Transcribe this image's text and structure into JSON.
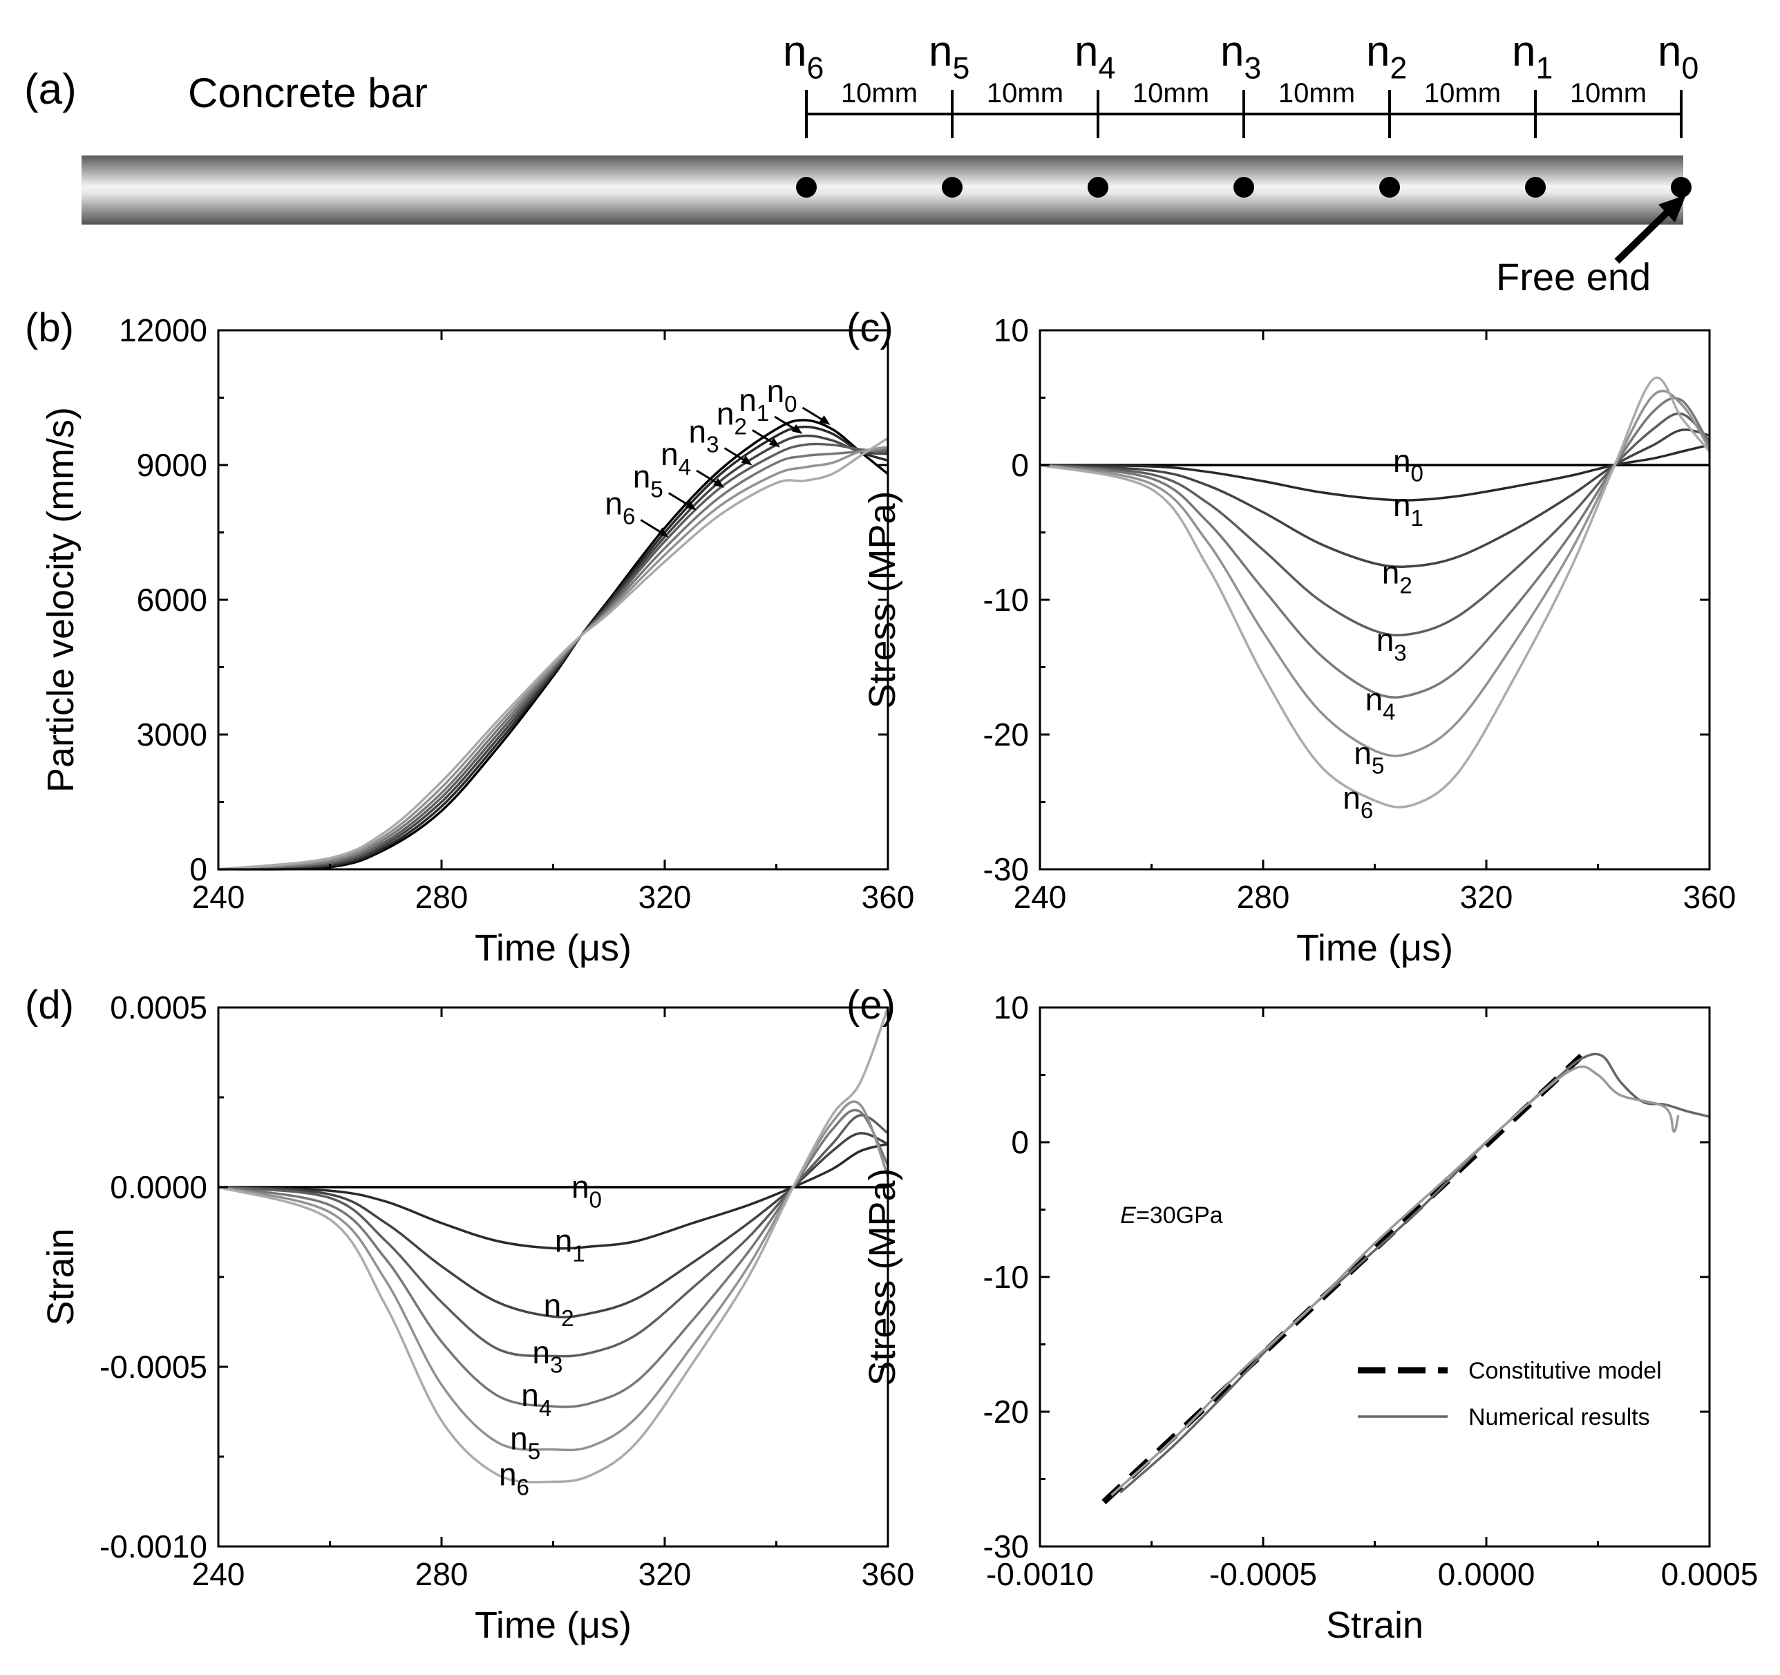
{
  "panel_a": {
    "label": "(a)",
    "title": "Concrete bar",
    "spacing_label": "10mm",
    "free_end_label": "Free end",
    "nodes": [
      {
        "base": "n",
        "sub": "6"
      },
      {
        "base": "n",
        "sub": "5"
      },
      {
        "base": "n",
        "sub": "4"
      },
      {
        "base": "n",
        "sub": "3"
      },
      {
        "base": "n",
        "sub": "2"
      },
      {
        "base": "n",
        "sub": "1"
      },
      {
        "base": "n",
        "sub": "0"
      }
    ]
  },
  "series_names": [
    "n0",
    "n1",
    "n2",
    "n3",
    "n4",
    "n5",
    "n6"
  ],
  "series_colors": [
    "#000000",
    "#2a2a2a",
    "#444444",
    "#5e5e5e",
    "#787878",
    "#929292",
    "#ababab"
  ],
  "chart_data": [
    {
      "id": "b",
      "panel_label": "(b)",
      "type": "line",
      "xlabel": "Time (μs)",
      "ylabel": "Particle velocity (mm/s)",
      "xlim": [
        240,
        360
      ],
      "ylim": [
        0,
        12000
      ],
      "xticks": [
        240,
        280,
        320,
        360
      ],
      "xtick_labels": [
        "240",
        "280",
        "320",
        "360"
      ],
      "yticks": [
        0,
        3000,
        6000,
        9000,
        12000
      ],
      "ytick_labels": [
        "0",
        "3000",
        "6000",
        "9000",
        "12000"
      ],
      "series": [
        {
          "name": "n0",
          "x": [
            240,
            260,
            270,
            280,
            290,
            300,
            305,
            310,
            320,
            330,
            340,
            345,
            350,
            355,
            360
          ],
          "y": [
            0,
            50,
            450,
            1300,
            2700,
            4300,
            5200,
            6000,
            7600,
            8900,
            9800,
            10000,
            9800,
            9300,
            8800
          ]
        },
        {
          "name": "n1",
          "x": [
            240,
            260,
            270,
            280,
            290,
            300,
            305,
            310,
            320,
            330,
            340,
            345,
            350,
            355,
            360
          ],
          "y": [
            0,
            80,
            500,
            1400,
            2800,
            4350,
            5200,
            5950,
            7500,
            8800,
            9650,
            9850,
            9700,
            9300,
            9100
          ]
        },
        {
          "name": "n2",
          "x": [
            240,
            260,
            270,
            280,
            290,
            300,
            305,
            310,
            320,
            330,
            340,
            345,
            350,
            355,
            360
          ],
          "y": [
            0,
            110,
            560,
            1500,
            2900,
            4400,
            5200,
            5900,
            7400,
            8650,
            9450,
            9650,
            9550,
            9300,
            9250
          ]
        },
        {
          "name": "n3",
          "x": [
            240,
            260,
            270,
            280,
            290,
            300,
            305,
            310,
            320,
            330,
            340,
            345,
            350,
            355,
            360
          ],
          "y": [
            0,
            140,
            620,
            1600,
            3000,
            4450,
            5200,
            5850,
            7300,
            8500,
            9250,
            9450,
            9450,
            9350,
            9300
          ]
        },
        {
          "name": "n4",
          "x": [
            240,
            260,
            270,
            280,
            290,
            300,
            305,
            310,
            320,
            330,
            340,
            345,
            350,
            355,
            360
          ],
          "y": [
            0,
            170,
            690,
            1700,
            3100,
            4500,
            5200,
            5800,
            7150,
            8300,
            9050,
            9200,
            9250,
            9300,
            9350
          ]
        },
        {
          "name": "n5",
          "x": [
            240,
            260,
            270,
            280,
            290,
            300,
            305,
            310,
            320,
            330,
            340,
            345,
            350,
            355,
            360
          ],
          "y": [
            0,
            210,
            760,
            1820,
            3200,
            4550,
            5200,
            5750,
            7000,
            8100,
            8800,
            8950,
            9050,
            9300,
            9400
          ]
        },
        {
          "name": "n6",
          "x": [
            240,
            260,
            270,
            280,
            290,
            300,
            305,
            310,
            320,
            330,
            340,
            345,
            350,
            355,
            360
          ],
          "y": [
            0,
            250,
            840,
            1950,
            3300,
            4600,
            5200,
            5700,
            6850,
            7900,
            8600,
            8650,
            8800,
            9200,
            9600
          ]
        }
      ],
      "annotations": [
        {
          "base": "n",
          "sub": "0",
          "x": 341,
          "y": 10400
        },
        {
          "base": "n",
          "sub": "1",
          "x": 336,
          "y": 10200
        },
        {
          "base": "n",
          "sub": "2",
          "x": 332,
          "y": 9900
        },
        {
          "base": "n",
          "sub": "3",
          "x": 327,
          "y": 9500
        },
        {
          "base": "n",
          "sub": "4",
          "x": 322,
          "y": 9000
        },
        {
          "base": "n",
          "sub": "5",
          "x": 317,
          "y": 8500
        },
        {
          "base": "n",
          "sub": "6",
          "x": 312,
          "y": 7900
        }
      ]
    },
    {
      "id": "c",
      "panel_label": "(c)",
      "type": "line",
      "xlabel": "Time (μs)",
      "ylabel": "Stress (MPa)",
      "xlim": [
        240,
        360
      ],
      "ylim": [
        -30,
        10
      ],
      "xticks": [
        240,
        280,
        320,
        360
      ],
      "xtick_labels": [
        "240",
        "280",
        "320",
        "360"
      ],
      "yticks": [
        -30,
        -20,
        -10,
        0,
        10
      ],
      "ytick_labels": [
        "-30",
        "-20",
        "-10",
        "0",
        "10"
      ],
      "series": [
        {
          "name": "n0",
          "x": [
            240,
            360
          ],
          "y": [
            0,
            0
          ]
        },
        {
          "name": "n1",
          "x": [
            240,
            260,
            270,
            280,
            290,
            300,
            307,
            315,
            325,
            335,
            343,
            350,
            355,
            360
          ],
          "y": [
            0,
            -0.1,
            -0.5,
            -1.2,
            -2.0,
            -2.5,
            -2.6,
            -2.3,
            -1.6,
            -0.8,
            0,
            0.5,
            1.0,
            1.5
          ]
        },
        {
          "name": "n2",
          "x": [
            240,
            260,
            270,
            280,
            290,
            300,
            307,
            315,
            325,
            335,
            343,
            350,
            355,
            360
          ],
          "y": [
            0,
            -0.4,
            -1.5,
            -3.5,
            -5.8,
            -7.3,
            -7.5,
            -6.8,
            -4.8,
            -2.3,
            0,
            1.5,
            2.6,
            2.2
          ]
        },
        {
          "name": "n3",
          "x": [
            240,
            260,
            270,
            280,
            290,
            300,
            307,
            315,
            325,
            335,
            343,
            350,
            355,
            360
          ],
          "y": [
            0,
            -0.7,
            -2.8,
            -6.3,
            -10.0,
            -12.3,
            -12.5,
            -11.2,
            -7.8,
            -3.8,
            0,
            2.7,
            3.8,
            1.8
          ]
        },
        {
          "name": "n4",
          "x": [
            240,
            260,
            270,
            280,
            290,
            300,
            307,
            315,
            325,
            335,
            343,
            350,
            355,
            360
          ],
          "y": [
            0,
            -1.0,
            -4.2,
            -9.2,
            -14.0,
            -16.9,
            -17.0,
            -15.2,
            -10.6,
            -5.2,
            0,
            4.0,
            4.8,
            1.5
          ]
        },
        {
          "name": "n5",
          "x": [
            240,
            260,
            270,
            280,
            290,
            300,
            307,
            315,
            325,
            335,
            343,
            350,
            355,
            360
          ],
          "y": [
            0,
            -1.4,
            -5.7,
            -12.4,
            -18.2,
            -21.2,
            -21.3,
            -19.0,
            -13.2,
            -6.5,
            0,
            5.2,
            4.5,
            1.2
          ]
        },
        {
          "name": "n6",
          "x": [
            240,
            260,
            270,
            280,
            290,
            300,
            307,
            315,
            325,
            335,
            343,
            350,
            355,
            360
          ],
          "y": [
            0,
            -1.8,
            -7.5,
            -15.6,
            -22.2,
            -24.9,
            -25.2,
            -22.8,
            -15.8,
            -7.8,
            0,
            6.4,
            3.5,
            1.0
          ]
        }
      ],
      "annotations": [
        {
          "base": "n",
          "sub": "0",
          "x": 306,
          "y": -0.5
        },
        {
          "base": "n",
          "sub": "1",
          "x": 306,
          "y": -3.8
        },
        {
          "base": "n",
          "sub": "2",
          "x": 304,
          "y": -8.8
        },
        {
          "base": "n",
          "sub": "3",
          "x": 303,
          "y": -13.8
        },
        {
          "base": "n",
          "sub": "4",
          "x": 301,
          "y": -18.2
        },
        {
          "base": "n",
          "sub": "5",
          "x": 299,
          "y": -22.2
        },
        {
          "base": "n",
          "sub": "6",
          "x": 297,
          "y": -25.5
        }
      ]
    },
    {
      "id": "d",
      "panel_label": "(d)",
      "type": "line",
      "xlabel": "Time (μs)",
      "ylabel": "Strain",
      "xlim": [
        240,
        360
      ],
      "ylim": [
        -0.001,
        0.0005
      ],
      "xticks": [
        240,
        280,
        320,
        360
      ],
      "xtick_labels": [
        "240",
        "280",
        "320",
        "360"
      ],
      "yticks": [
        -0.001,
        -0.0005,
        0,
        0.0005
      ],
      "ytick_labels": [
        "-0.0010",
        "-0.0005",
        "0.0000",
        "0.0005"
      ],
      "series": [
        {
          "name": "n0",
          "x": [
            240,
            360
          ],
          "y": [
            0,
            0
          ]
        },
        {
          "name": "n1",
          "x": [
            240,
            260,
            270,
            280,
            290,
            300,
            307,
            315,
            325,
            335,
            343,
            350,
            355,
            360
          ],
          "y": [
            0,
            -1e-05,
            -4e-05,
            -0.0001,
            -0.00015,
            -0.00017,
            -0.000165,
            -0.00015,
            -0.0001,
            -5e-05,
            0,
            5e-05,
            0.0001,
            0.00012
          ]
        },
        {
          "name": "n2",
          "x": [
            240,
            260,
            270,
            280,
            290,
            300,
            307,
            315,
            325,
            335,
            343,
            350,
            355,
            360
          ],
          "y": [
            0,
            -2e-05,
            -0.0001,
            -0.00022,
            -0.00032,
            -0.00036,
            -0.00035,
            -0.00031,
            -0.00021,
            -0.0001,
            0,
            0.0001,
            0.00015,
            0.00012
          ]
        },
        {
          "name": "n3",
          "x": [
            240,
            260,
            270,
            280,
            290,
            300,
            307,
            315,
            325,
            335,
            343,
            350,
            355,
            360
          ],
          "y": [
            0,
            -3e-05,
            -0.00015,
            -0.00032,
            -0.00045,
            -0.00047,
            -0.00046,
            -0.00041,
            -0.00028,
            -0.00014,
            0,
            0.00012,
            0.0002,
            0.00015
          ]
        },
        {
          "name": "n4",
          "x": [
            240,
            260,
            270,
            280,
            290,
            300,
            307,
            315,
            325,
            335,
            343,
            350,
            355,
            360
          ],
          "y": [
            0,
            -5e-05,
            -0.0002,
            -0.00043,
            -0.00058,
            -0.00061,
            -0.0006,
            -0.00054,
            -0.00037,
            -0.00018,
            0,
            0.00016,
            0.00021,
            6e-05
          ]
        },
        {
          "name": "n5",
          "x": [
            240,
            260,
            270,
            280,
            290,
            300,
            307,
            315,
            325,
            335,
            343,
            350,
            355,
            360
          ],
          "y": [
            0,
            -7e-05,
            -0.00026,
            -0.00055,
            -0.00071,
            -0.00073,
            -0.00072,
            -0.00064,
            -0.00044,
            -0.00022,
            0,
            0.00018,
            0.00023,
            3e-05
          ]
        },
        {
          "name": "n6",
          "x": [
            240,
            260,
            270,
            280,
            290,
            300,
            307,
            315,
            325,
            335,
            343,
            350,
            355,
            360
          ],
          "y": [
            0,
            -9e-05,
            -0.00033,
            -0.00065,
            -0.0008,
            -0.00082,
            -0.0008,
            -0.00071,
            -0.00049,
            -0.00025,
            0,
            0.0002,
            0.00029,
            0.0005
          ]
        }
      ],
      "annotations": [
        {
          "base": "n",
          "sub": "0",
          "x": 306,
          "y": -3e-05
        },
        {
          "base": "n",
          "sub": "1",
          "x": 303,
          "y": -0.00018
        },
        {
          "base": "n",
          "sub": "2",
          "x": 301,
          "y": -0.00036
        },
        {
          "base": "n",
          "sub": "3",
          "x": 299,
          "y": -0.00049
        },
        {
          "base": "n",
          "sub": "4",
          "x": 297,
          "y": -0.00061
        },
        {
          "base": "n",
          "sub": "5",
          "x": 295,
          "y": -0.00073
        },
        {
          "base": "n",
          "sub": "6",
          "x": 293,
          "y": -0.00083
        }
      ]
    },
    {
      "id": "e",
      "panel_label": "(e)",
      "type": "line",
      "xlabel": "Strain",
      "ylabel": "Stress (MPa)",
      "xlim": [
        -0.001,
        0.0005
      ],
      "ylim": [
        -30,
        10
      ],
      "xticks": [
        -0.001,
        -0.0005,
        0,
        0.0005
      ],
      "xtick_labels": [
        "-0.0010",
        "-0.0005",
        "0.0000",
        "0.0005"
      ],
      "yticks": [
        -30,
        -20,
        -10,
        0,
        10
      ],
      "ytick_labels": [
        "-30",
        "-20",
        "-10",
        "0",
        "10"
      ],
      "annotation_text": {
        "italic": "E",
        "rest": "=30GPa",
        "x": -0.00082,
        "y": -6
      },
      "legend": {
        "position": "lower-right",
        "entries": [
          "Constitutive model",
          "Numerical results"
        ]
      },
      "series": [
        {
          "name": "Constitutive model",
          "style": "dashed",
          "x": [
            -0.000857,
            0.000213
          ],
          "y": [
            -26.7,
            6.4
          ]
        },
        {
          "name": "Numerical results",
          "style": "solid",
          "x": [
            -0.00082,
            -0.0007,
            -0.00058,
            -0.00045,
            -0.0003,
            -0.00015,
            0,
            0.00015,
            0.000213,
            0.00026,
            0.0003,
            0.00035,
            0.0004,
            0.00045,
            0.0005
          ],
          "y": [
            -26,
            -22.5,
            -18.5,
            -14,
            -9.5,
            -5,
            0,
            4.5,
            6.2,
            6.4,
            4.5,
            3.0,
            2.8,
            2.3,
            1.9
          ]
        },
        {
          "name": "Numerical results",
          "style": "solid",
          "x": [
            -0.00084,
            -0.0007,
            -0.00055,
            -0.0004,
            -0.00025,
            -0.0001,
            0.0001,
            0.0002,
            0.00025,
            0.0003,
            0.0004,
            0.00042,
            0.00043
          ],
          "y": [
            -26.2,
            -22,
            -17,
            -12.5,
            -7.5,
            -3,
            3,
            5.5,
            5.0,
            3.5,
            2.6,
            0.8,
            2.0
          ]
        }
      ]
    }
  ]
}
